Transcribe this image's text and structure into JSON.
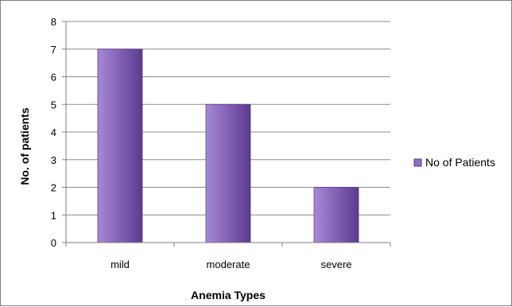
{
  "chart_data": {
    "type": "bar",
    "categories": [
      "mild",
      "moderate",
      "severe"
    ],
    "series": [
      {
        "name": "No of Patients",
        "values": [
          7,
          5,
          2
        ]
      }
    ],
    "xlabel": "Anemia Types",
    "ylabel": "No. of patients",
    "ylim": [
      0,
      8
    ],
    "yticks": [
      0,
      1,
      2,
      3,
      4,
      5,
      6,
      7,
      8
    ],
    "grid": true,
    "legend_position": "right",
    "colors": {
      "bar_light": "#a68ad2",
      "bar_mid": "#8e6cc0",
      "bar_dark": "#5a3b8c",
      "gridline": "#8c8c8c"
    }
  }
}
